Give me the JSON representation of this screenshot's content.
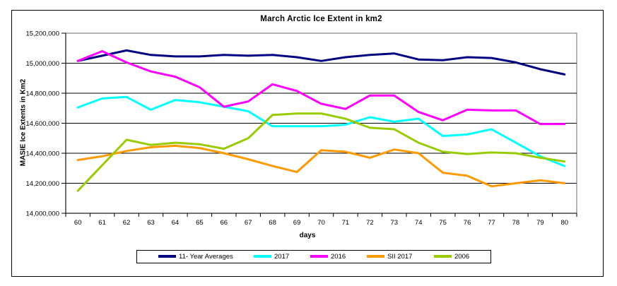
{
  "chart_data": {
    "type": "line",
    "title": "March Arctic Ice Extent in km2",
    "xlabel": "days",
    "ylabel": "MASIE Ice  Extents in Km2",
    "x": [
      60,
      61,
      62,
      63,
      64,
      65,
      66,
      67,
      68,
      69,
      70,
      71,
      72,
      73,
      74,
      75,
      76,
      77,
      78,
      79,
      80
    ],
    "ylim": [
      14000000,
      15200000
    ],
    "ytick_step": 200000,
    "ytick_labels": [
      "14,000,000",
      "14,200,000",
      "14,400,000",
      "14,600,000",
      "14,800,000",
      "15,000,000",
      "15,200,000"
    ],
    "grid": "horizontal-black",
    "plot_border_color": "#808080",
    "legend_position": "bottom-center",
    "series": [
      {
        "name": "11- Year Averages",
        "color": "#000080",
        "values": [
          15015000,
          15050000,
          15085000,
          15055000,
          15045000,
          15045000,
          15055000,
          15050000,
          15055000,
          15040000,
          15015000,
          15040000,
          15055000,
          15065000,
          15025000,
          15020000,
          15040000,
          15035000,
          15005000,
          14960000,
          14925000
        ]
      },
      {
        "name": "2017",
        "color": "#00FFFF",
        "values": [
          14705000,
          14765000,
          14775000,
          14690000,
          14755000,
          14740000,
          14710000,
          14680000,
          14580000,
          14580000,
          14580000,
          14590000,
          14640000,
          14610000,
          14630000,
          14515000,
          14525000,
          14560000,
          14470000,
          14380000,
          14315000
        ]
      },
      {
        "name": "2016",
        "color": "#FF00FF",
        "values": [
          15015000,
          15080000,
          15005000,
          14945000,
          14910000,
          14840000,
          14710000,
          14745000,
          14860000,
          14815000,
          14730000,
          14695000,
          14785000,
          14785000,
          14675000,
          14620000,
          14690000,
          14685000,
          14685000,
          14595000,
          14595000
        ]
      },
      {
        "name": "SII 2017",
        "color": "#FF9900",
        "values": [
          14355000,
          14380000,
          14415000,
          14440000,
          14450000,
          14435000,
          14400000,
          14360000,
          14315000,
          14275000,
          14420000,
          14410000,
          14370000,
          14425000,
          14400000,
          14270000,
          14250000,
          14180000,
          14200000,
          14220000,
          14200000
        ]
      },
      {
        "name": "2006",
        "color": "#99CC00",
        "values": [
          14150000,
          14320000,
          14490000,
          14455000,
          14470000,
          14460000,
          14430000,
          14500000,
          14655000,
          14665000,
          14665000,
          14630000,
          14570000,
          14560000,
          14470000,
          14410000,
          14395000,
          14405000,
          14400000,
          14370000,
          14345000
        ]
      }
    ]
  }
}
